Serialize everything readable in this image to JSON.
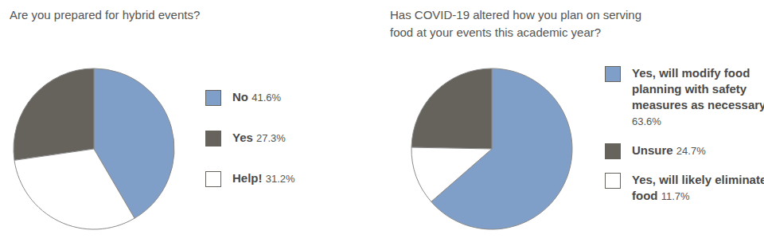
{
  "chart_data": [
    {
      "type": "pie",
      "title": "Are you prepared for hybrid events?",
      "categories": [
        "No",
        "Yes",
        "Help!"
      ],
      "values": [
        41.6,
        27.3,
        31.2
      ],
      "value_labels": [
        "41.6%",
        "27.3%",
        "31.2%"
      ],
      "colors": [
        "#7f9fc8",
        "#66625c",
        "#ffffff"
      ],
      "legend": "right"
    },
    {
      "type": "pie",
      "title": "Has COVID-19 altered how you plan on serving food at your events this academic year?",
      "categories": [
        "Yes, will modify food planning with safety measures as necessary",
        "Unsure",
        "Yes, will likely eliminate food"
      ],
      "values": [
        63.6,
        24.7,
        11.7
      ],
      "value_labels": [
        "63.6%",
        "24.7%",
        "11.7%"
      ],
      "colors": [
        "#7f9fc8",
        "#66625c",
        "#ffffff"
      ],
      "legend": "right"
    }
  ]
}
